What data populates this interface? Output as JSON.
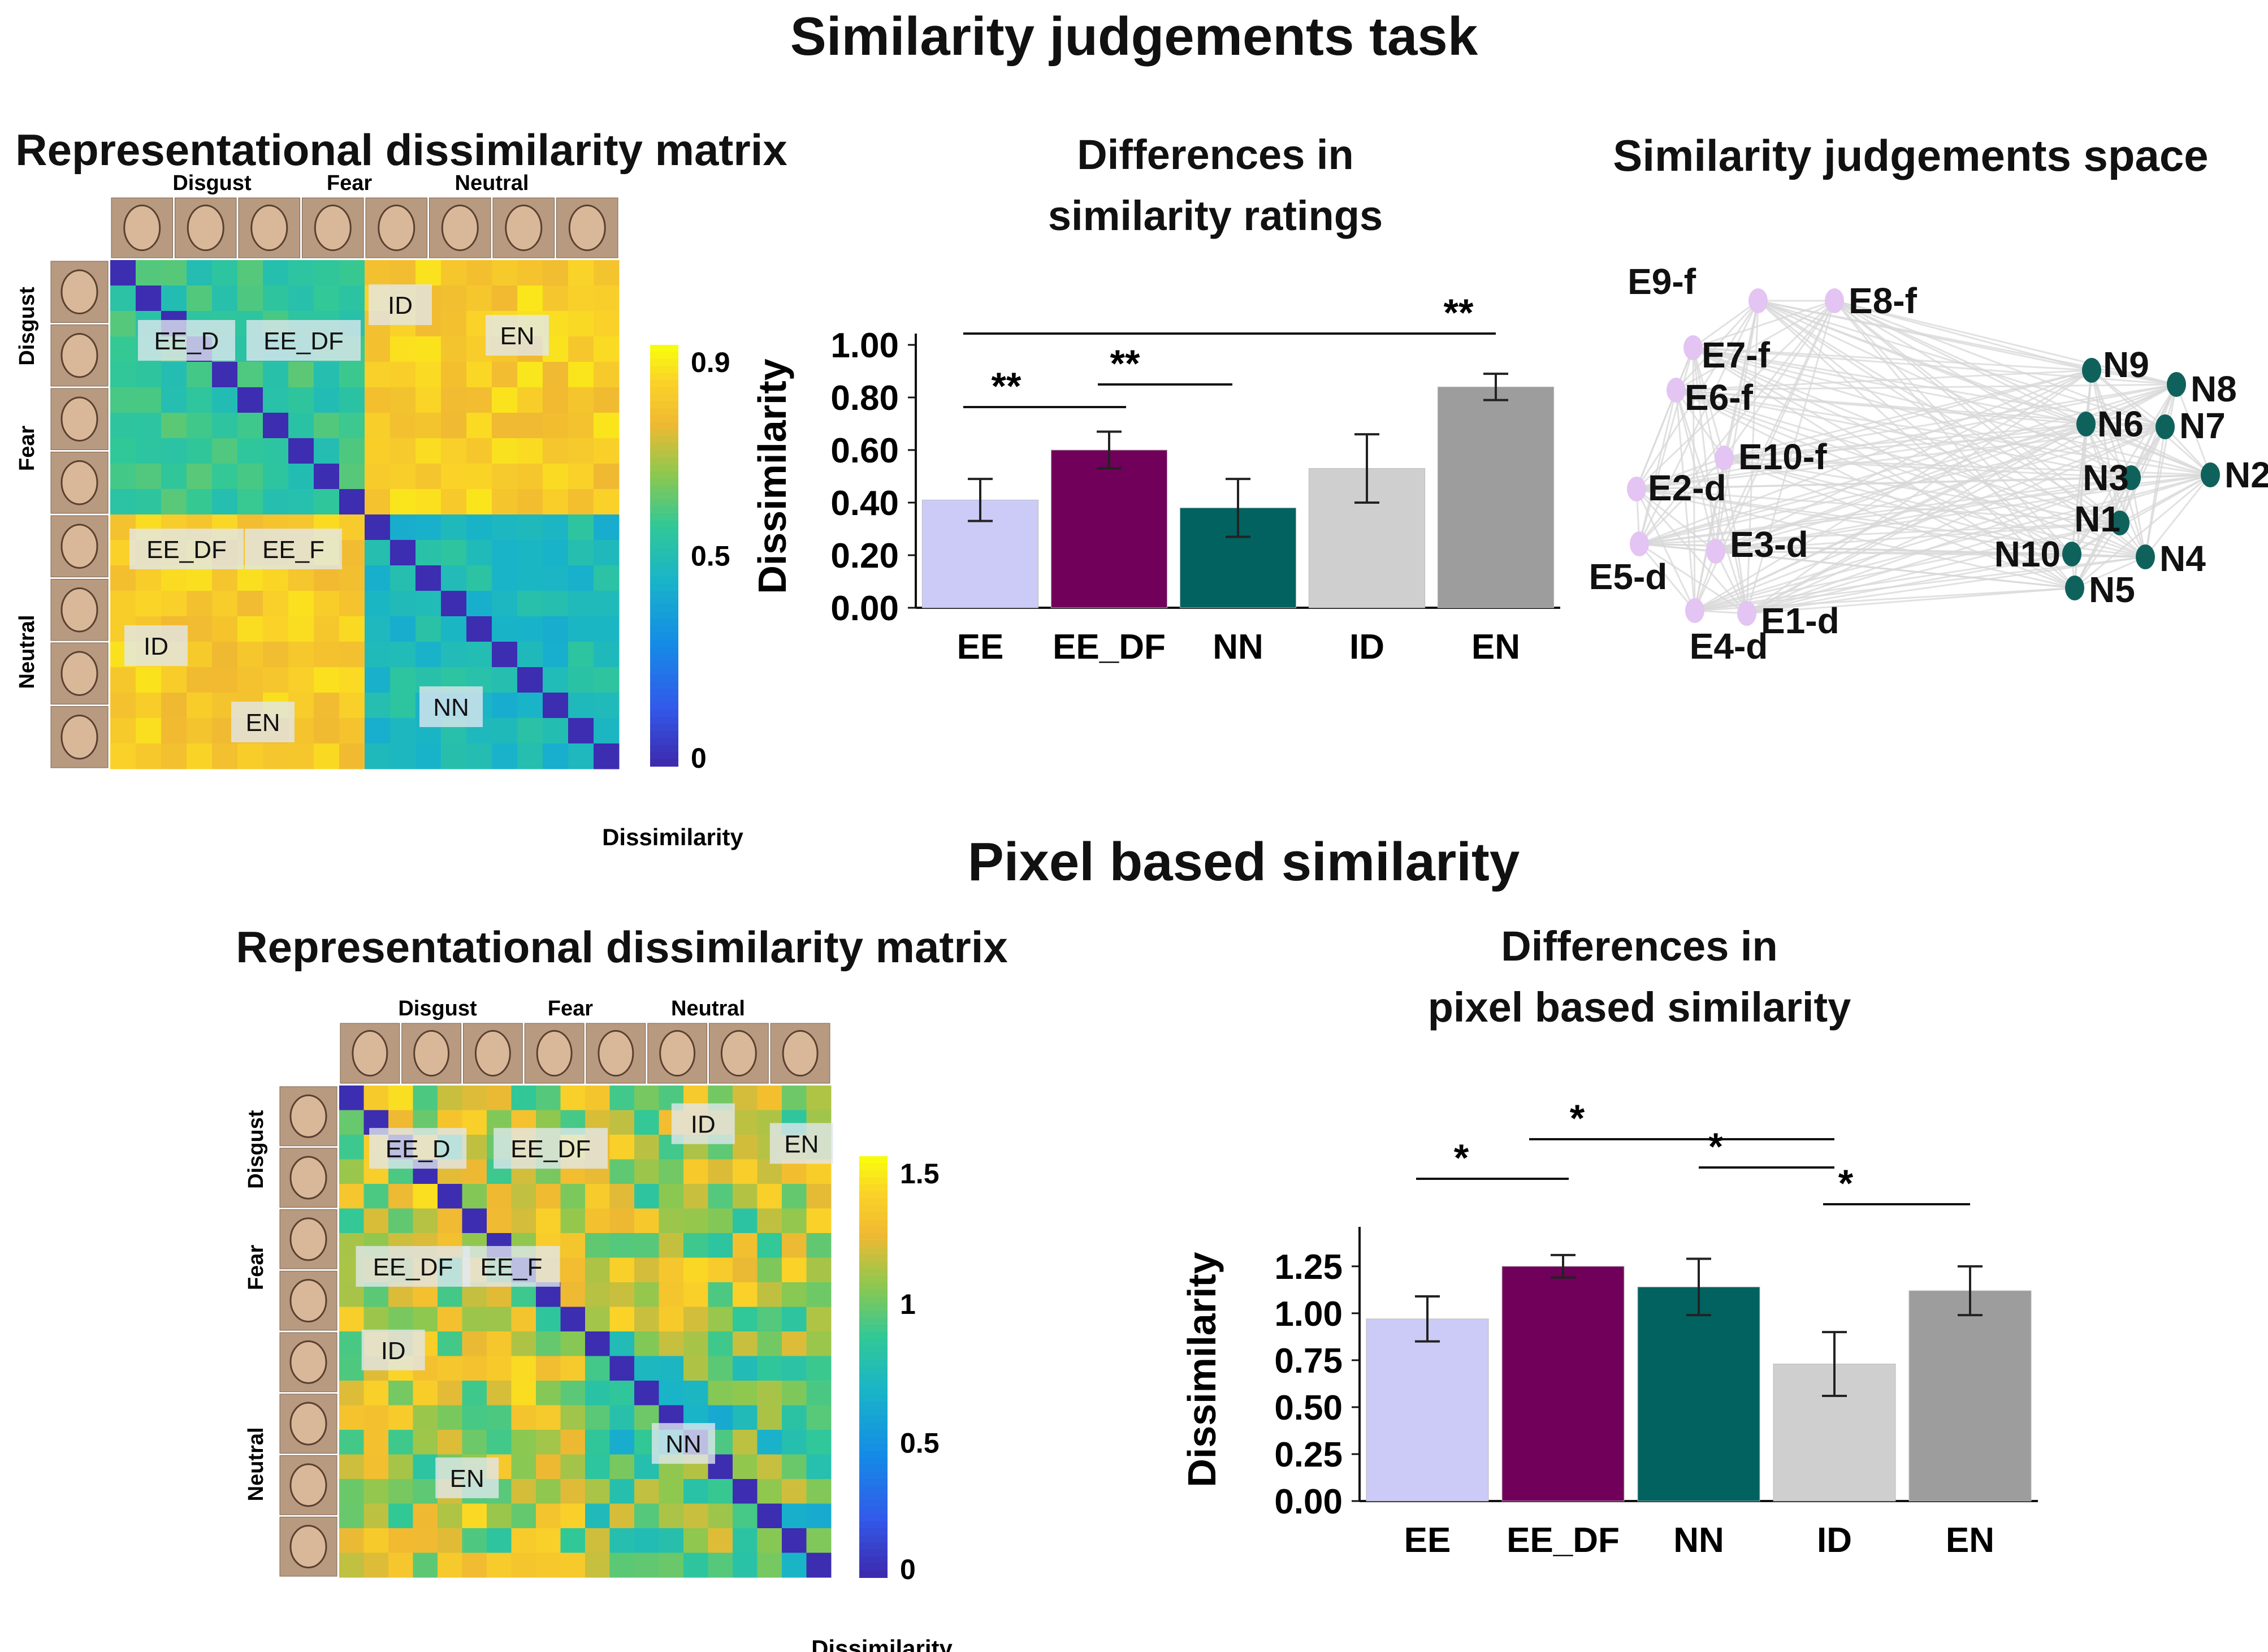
{
  "section1": {
    "title": "Similarity judgements task"
  },
  "section2": {
    "title": "Pixel based similarity"
  },
  "rdm1": {
    "title": "Representational dissimilarity matrix",
    "col_groups": [
      "Disgust",
      "Fear",
      "Neutral"
    ],
    "row_groups": [
      "Disgust",
      "Fear",
      "Neutral"
    ],
    "region_labels": [
      "EE_D",
      "EE_DF",
      "ID",
      "EN",
      "EE_DF",
      "EE_F",
      "ID",
      "EN",
      "NN"
    ],
    "colorbar": {
      "ticks": [
        "0.9",
        "0.5",
        "0"
      ],
      "label": "Dissimilarity"
    },
    "colors": {
      "high": "#f3d51c",
      "mid": "#2cbba0",
      "low": "#3a2ea8"
    }
  },
  "rdm2": {
    "title": "Representational dissimilarity matrix",
    "col_groups": [
      "Disgust",
      "Fear",
      "Neutral"
    ],
    "row_groups": [
      "Disgust",
      "Fear",
      "Neutral"
    ],
    "region_labels": [
      "EE_D",
      "EE_DF",
      "ID",
      "EN",
      "EE_DF",
      "EE_F",
      "ID",
      "EN",
      "NN"
    ],
    "colorbar": {
      "ticks": [
        "1.5",
        "1",
        "0.5",
        "0"
      ],
      "label": "Dissimilarity"
    }
  },
  "bar1": {
    "title_line1": "Differences in",
    "title_line2": "similarity ratings",
    "significance": [
      "**",
      "**",
      "**"
    ]
  },
  "bar2": {
    "title_line1": "Differences in",
    "title_line2": "pixel based similarity",
    "significance": [
      "*",
      "*",
      "*",
      "*"
    ]
  },
  "network": {
    "title": "Similarity judgements space",
    "emotion_nodes": [
      "E9-f",
      "E8-f",
      "E7-f",
      "E6-f",
      "E10-f",
      "E2-d",
      "E3-d",
      "E5-d",
      "E1-d",
      "E4-d"
    ],
    "neutral_nodes": [
      "N9",
      "N8",
      "N6",
      "N7",
      "N3",
      "N2",
      "N1",
      "N10",
      "N4",
      "N5"
    ],
    "colors": {
      "emotion": "#e3c4f2",
      "neutral": "#0f625c",
      "edge": "#d8d8d8"
    }
  },
  "chart_data": [
    {
      "type": "bar",
      "title": "Differences in similarity ratings",
      "categories": [
        "EE",
        "EE_DF",
        "NN",
        "ID",
        "EN"
      ],
      "values": [
        0.41,
        0.6,
        0.38,
        0.53,
        0.84
      ],
      "errors": [
        0.08,
        0.07,
        0.11,
        0.13,
        0.05
      ],
      "colors": [
        "#cccbf7",
        "#70005a",
        "#016260",
        "#cfcfcf",
        "#9d9d9d"
      ],
      "ylabel": "Dissimilarity",
      "yticks": [
        "0.00",
        "0.20",
        "0.40",
        "0.60",
        "0.80",
        "1.00"
      ],
      "ylim": [
        0,
        1.0
      ]
    },
    {
      "type": "bar",
      "title": "Differences in pixel based similarity",
      "categories": [
        "EE",
        "EE_DF",
        "NN",
        "ID",
        "EN"
      ],
      "values": [
        0.97,
        1.25,
        1.14,
        0.73,
        1.12
      ],
      "errors": [
        0.12,
        0.06,
        0.15,
        0.17,
        0.13
      ],
      "colors": [
        "#cccbf7",
        "#70005a",
        "#016260",
        "#cfcfcf",
        "#9d9d9d"
      ],
      "ylabel": "Dissimilarity",
      "yticks": [
        "0.00",
        "0.25",
        "0.50",
        "0.75",
        "1.00",
        "1.25"
      ],
      "ylim": [
        0,
        1.4
      ]
    }
  ]
}
